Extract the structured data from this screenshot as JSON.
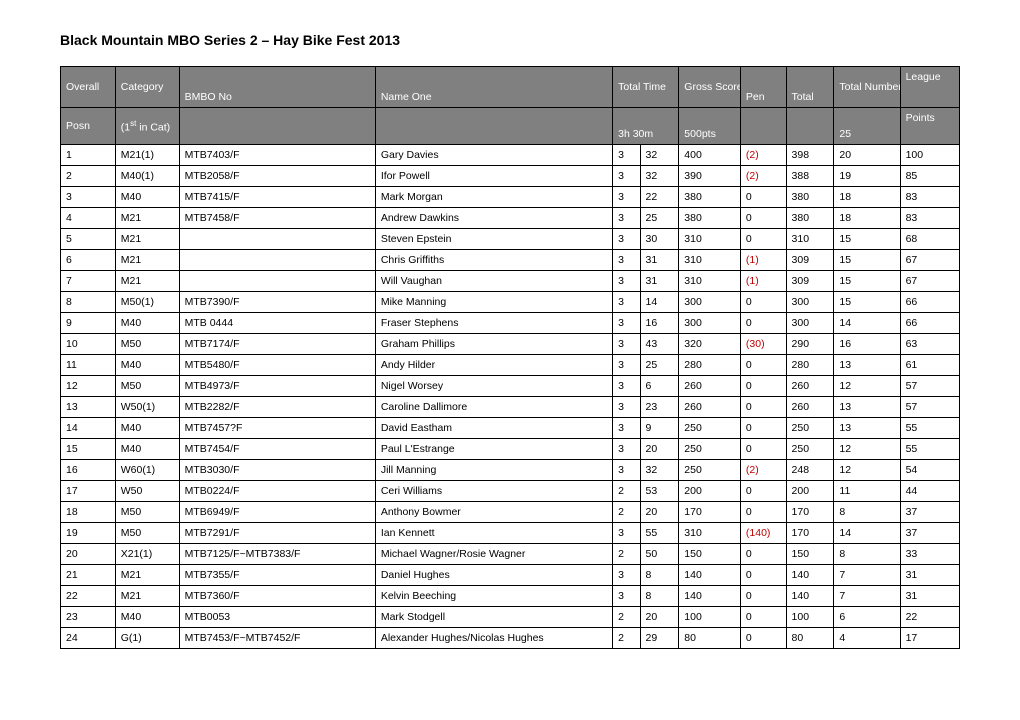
{
  "title": "Black Mountain MBO Series 2 – Hay Bike Fest 2013",
  "header": {
    "row1": {
      "overall": "Overall",
      "category": "Category",
      "bmbo": "BMBO No",
      "name": "Name One",
      "time": "Total Time",
      "gross": "Gross Score",
      "pen": "Pen",
      "total": "Total",
      "ctrls": "Total Number Controls",
      "league": "League"
    },
    "row2": {
      "posn": "Posn",
      "cat_pre": "(1",
      "cat_sup": "st",
      "cat_post": "  in Cat)",
      "time_limit": "3h 30m",
      "max_pts": "500pts",
      "max_ctrls": "25",
      "league": "Points"
    }
  },
  "rows": [
    {
      "p": "1",
      "cat": "M21(1)",
      "bmbo": "MTB7403/F",
      "name": "Gary Davies",
      "t1": "3",
      "t2": "32",
      "gross": "400",
      "pen": "(2)",
      "pen_neg": true,
      "total": "398",
      "ctrls": "20",
      "lg": "100"
    },
    {
      "p": "2",
      "cat": "M40(1)",
      "bmbo": "MTB2058/F",
      "name": "Ifor Powell",
      "t1": "3",
      "t2": "32",
      "gross": "390",
      "pen": "(2)",
      "pen_neg": true,
      "total": "388",
      "ctrls": "19",
      "lg": "85"
    },
    {
      "p": "3",
      "cat": "M40",
      "bmbo": "MTB7415/F",
      "name": "Mark Morgan",
      "t1": "3",
      "t2": "22",
      "gross": "380",
      "pen": "0",
      "pen_neg": false,
      "total": "380",
      "ctrls": "18",
      "lg": "83"
    },
    {
      "p": "4",
      "cat": "M21",
      "bmbo": "MTB7458/F",
      "name": "Andrew Dawkins",
      "t1": "3",
      "t2": "25",
      "gross": "380",
      "pen": "0",
      "pen_neg": false,
      "total": "380",
      "ctrls": "18",
      "lg": "83"
    },
    {
      "p": "5",
      "cat": "M21",
      "bmbo": "",
      "name": "Steven Epstein",
      "t1": "3",
      "t2": "30",
      "gross": "310",
      "pen": "0",
      "pen_neg": false,
      "total": "310",
      "ctrls": "15",
      "lg": "68"
    },
    {
      "p": "6",
      "cat": "M21",
      "bmbo": "",
      "name": "Chris Griffiths",
      "t1": "3",
      "t2": "31",
      "gross": "310",
      "pen": "(1)",
      "pen_neg": true,
      "total": "309",
      "ctrls": "15",
      "lg": "67"
    },
    {
      "p": "7",
      "cat": "M21",
      "bmbo": "",
      "name": "Will Vaughan",
      "t1": "3",
      "t2": "31",
      "gross": "310",
      "pen": "(1)",
      "pen_neg": true,
      "total": "309",
      "ctrls": "15",
      "lg": "67"
    },
    {
      "p": "8",
      "cat": "M50(1)",
      "bmbo": "MTB7390/F",
      "name": "Mike Manning",
      "t1": "3",
      "t2": "14",
      "gross": "300",
      "pen": "0",
      "pen_neg": false,
      "total": "300",
      "ctrls": "15",
      "lg": "66"
    },
    {
      "p": "9",
      "cat": "M40",
      "bmbo": "MTB 0444",
      "name": "Fraser Stephens",
      "t1": "3",
      "t2": "16",
      "gross": "300",
      "pen": "0",
      "pen_neg": false,
      "total": "300",
      "ctrls": "14",
      "lg": "66"
    },
    {
      "p": "10",
      "cat": "M50",
      "bmbo": "MTB7174/F",
      "name": "Graham Phillips",
      "t1": "3",
      "t2": "43",
      "gross": "320",
      "pen": "(30)",
      "pen_neg": true,
      "total": "290",
      "ctrls": "16",
      "lg": "63"
    },
    {
      "p": "11",
      "cat": "M40",
      "bmbo": "MTB5480/F",
      "name": "Andy Hilder",
      "t1": "3",
      "t2": "25",
      "gross": "280",
      "pen": "0",
      "pen_neg": false,
      "total": "280",
      "ctrls": "13",
      "lg": "61"
    },
    {
      "p": "12",
      "cat": "M50",
      "bmbo": "MTB4973/F",
      "name": "Nigel Worsey",
      "t1": "3",
      "t2": "6",
      "gross": "260",
      "pen": "0",
      "pen_neg": false,
      "total": "260",
      "ctrls": "12",
      "lg": "57"
    },
    {
      "p": "13",
      "cat": "W50(1)",
      "bmbo": "MTB2282/F",
      "name": "Caroline Dallimore",
      "t1": "3",
      "t2": "23",
      "gross": "260",
      "pen": "0",
      "pen_neg": false,
      "total": "260",
      "ctrls": "13",
      "lg": "57"
    },
    {
      "p": "14",
      "cat": "M40",
      "bmbo": "MTB7457?F",
      "name": "David Eastham",
      "t1": "3",
      "t2": "9",
      "gross": "250",
      "pen": "0",
      "pen_neg": false,
      "total": "250",
      "ctrls": "13",
      "lg": "55"
    },
    {
      "p": "15",
      "cat": "M40",
      "bmbo": "MTB7454/F",
      "name": "Paul L'Estrange",
      "t1": "3",
      "t2": "20",
      "gross": "250",
      "pen": "0",
      "pen_neg": false,
      "total": "250",
      "ctrls": "12",
      "lg": "55"
    },
    {
      "p": "16",
      "cat": "W60(1)",
      "bmbo": "MTB3030/F",
      "name": "Jill Manning",
      "t1": "3",
      "t2": "32",
      "gross": "250",
      "pen": "(2)",
      "pen_neg": true,
      "total": "248",
      "ctrls": "12",
      "lg": "54"
    },
    {
      "p": "17",
      "cat": "W50",
      "bmbo": "MTB0224/F",
      "name": "Ceri Williams",
      "t1": "2",
      "t2": "53",
      "gross": "200",
      "pen": "0",
      "pen_neg": false,
      "total": "200",
      "ctrls": "11",
      "lg": "44"
    },
    {
      "p": "18",
      "cat": "M50",
      "bmbo": "MTB6949/F",
      "name": "Anthony Bowmer",
      "t1": "2",
      "t2": "20",
      "gross": "170",
      "pen": "0",
      "pen_neg": false,
      "total": "170",
      "ctrls": "8",
      "lg": "37"
    },
    {
      "p": "19",
      "cat": "M50",
      "bmbo": "MTB7291/F",
      "name": "Ian Kennett",
      "t1": "3",
      "t2": "55",
      "gross": "310",
      "pen": "(140)",
      "pen_neg": true,
      "total": "170",
      "ctrls": "14",
      "lg": "37"
    },
    {
      "p": "20",
      "cat": "X21(1)",
      "bmbo": "MTB7125/F~MTB7383/F",
      "name": "Michael Wagner/Rosie Wagner",
      "t1": "2",
      "t2": "50",
      "gross": "150",
      "pen": "0",
      "pen_neg": false,
      "total": "150",
      "ctrls": "8",
      "lg": "33"
    },
    {
      "p": "21",
      "cat": "M21",
      "bmbo": "MTB7355/F",
      "name": "Daniel Hughes",
      "t1": "3",
      "t2": "8",
      "gross": "140",
      "pen": "0",
      "pen_neg": false,
      "total": "140",
      "ctrls": "7",
      "lg": "31"
    },
    {
      "p": "22",
      "cat": "M21",
      "bmbo": "MTB7360/F",
      "name": "Kelvin Beeching",
      "t1": "3",
      "t2": "8",
      "gross": "140",
      "pen": "0",
      "pen_neg": false,
      "total": "140",
      "ctrls": "7",
      "lg": "31"
    },
    {
      "p": "23",
      "cat": "M40",
      "bmbo": "MTB0053",
      "name": "Mark Stodgell",
      "t1": "2",
      "t2": "20",
      "gross": "100",
      "pen": "0",
      "pen_neg": false,
      "total": "100",
      "ctrls": "6",
      "lg": "22"
    },
    {
      "p": "24",
      "cat": "G(1)",
      "bmbo": "MTB7453/F~MTB7452/F",
      "name": "Alexander Hughes/Nicolas Hughes",
      "t1": "2",
      "t2": "29",
      "gross": "80",
      "pen": "0",
      "pen_neg": false,
      "total": "80",
      "ctrls": "4",
      "lg": "17"
    }
  ]
}
